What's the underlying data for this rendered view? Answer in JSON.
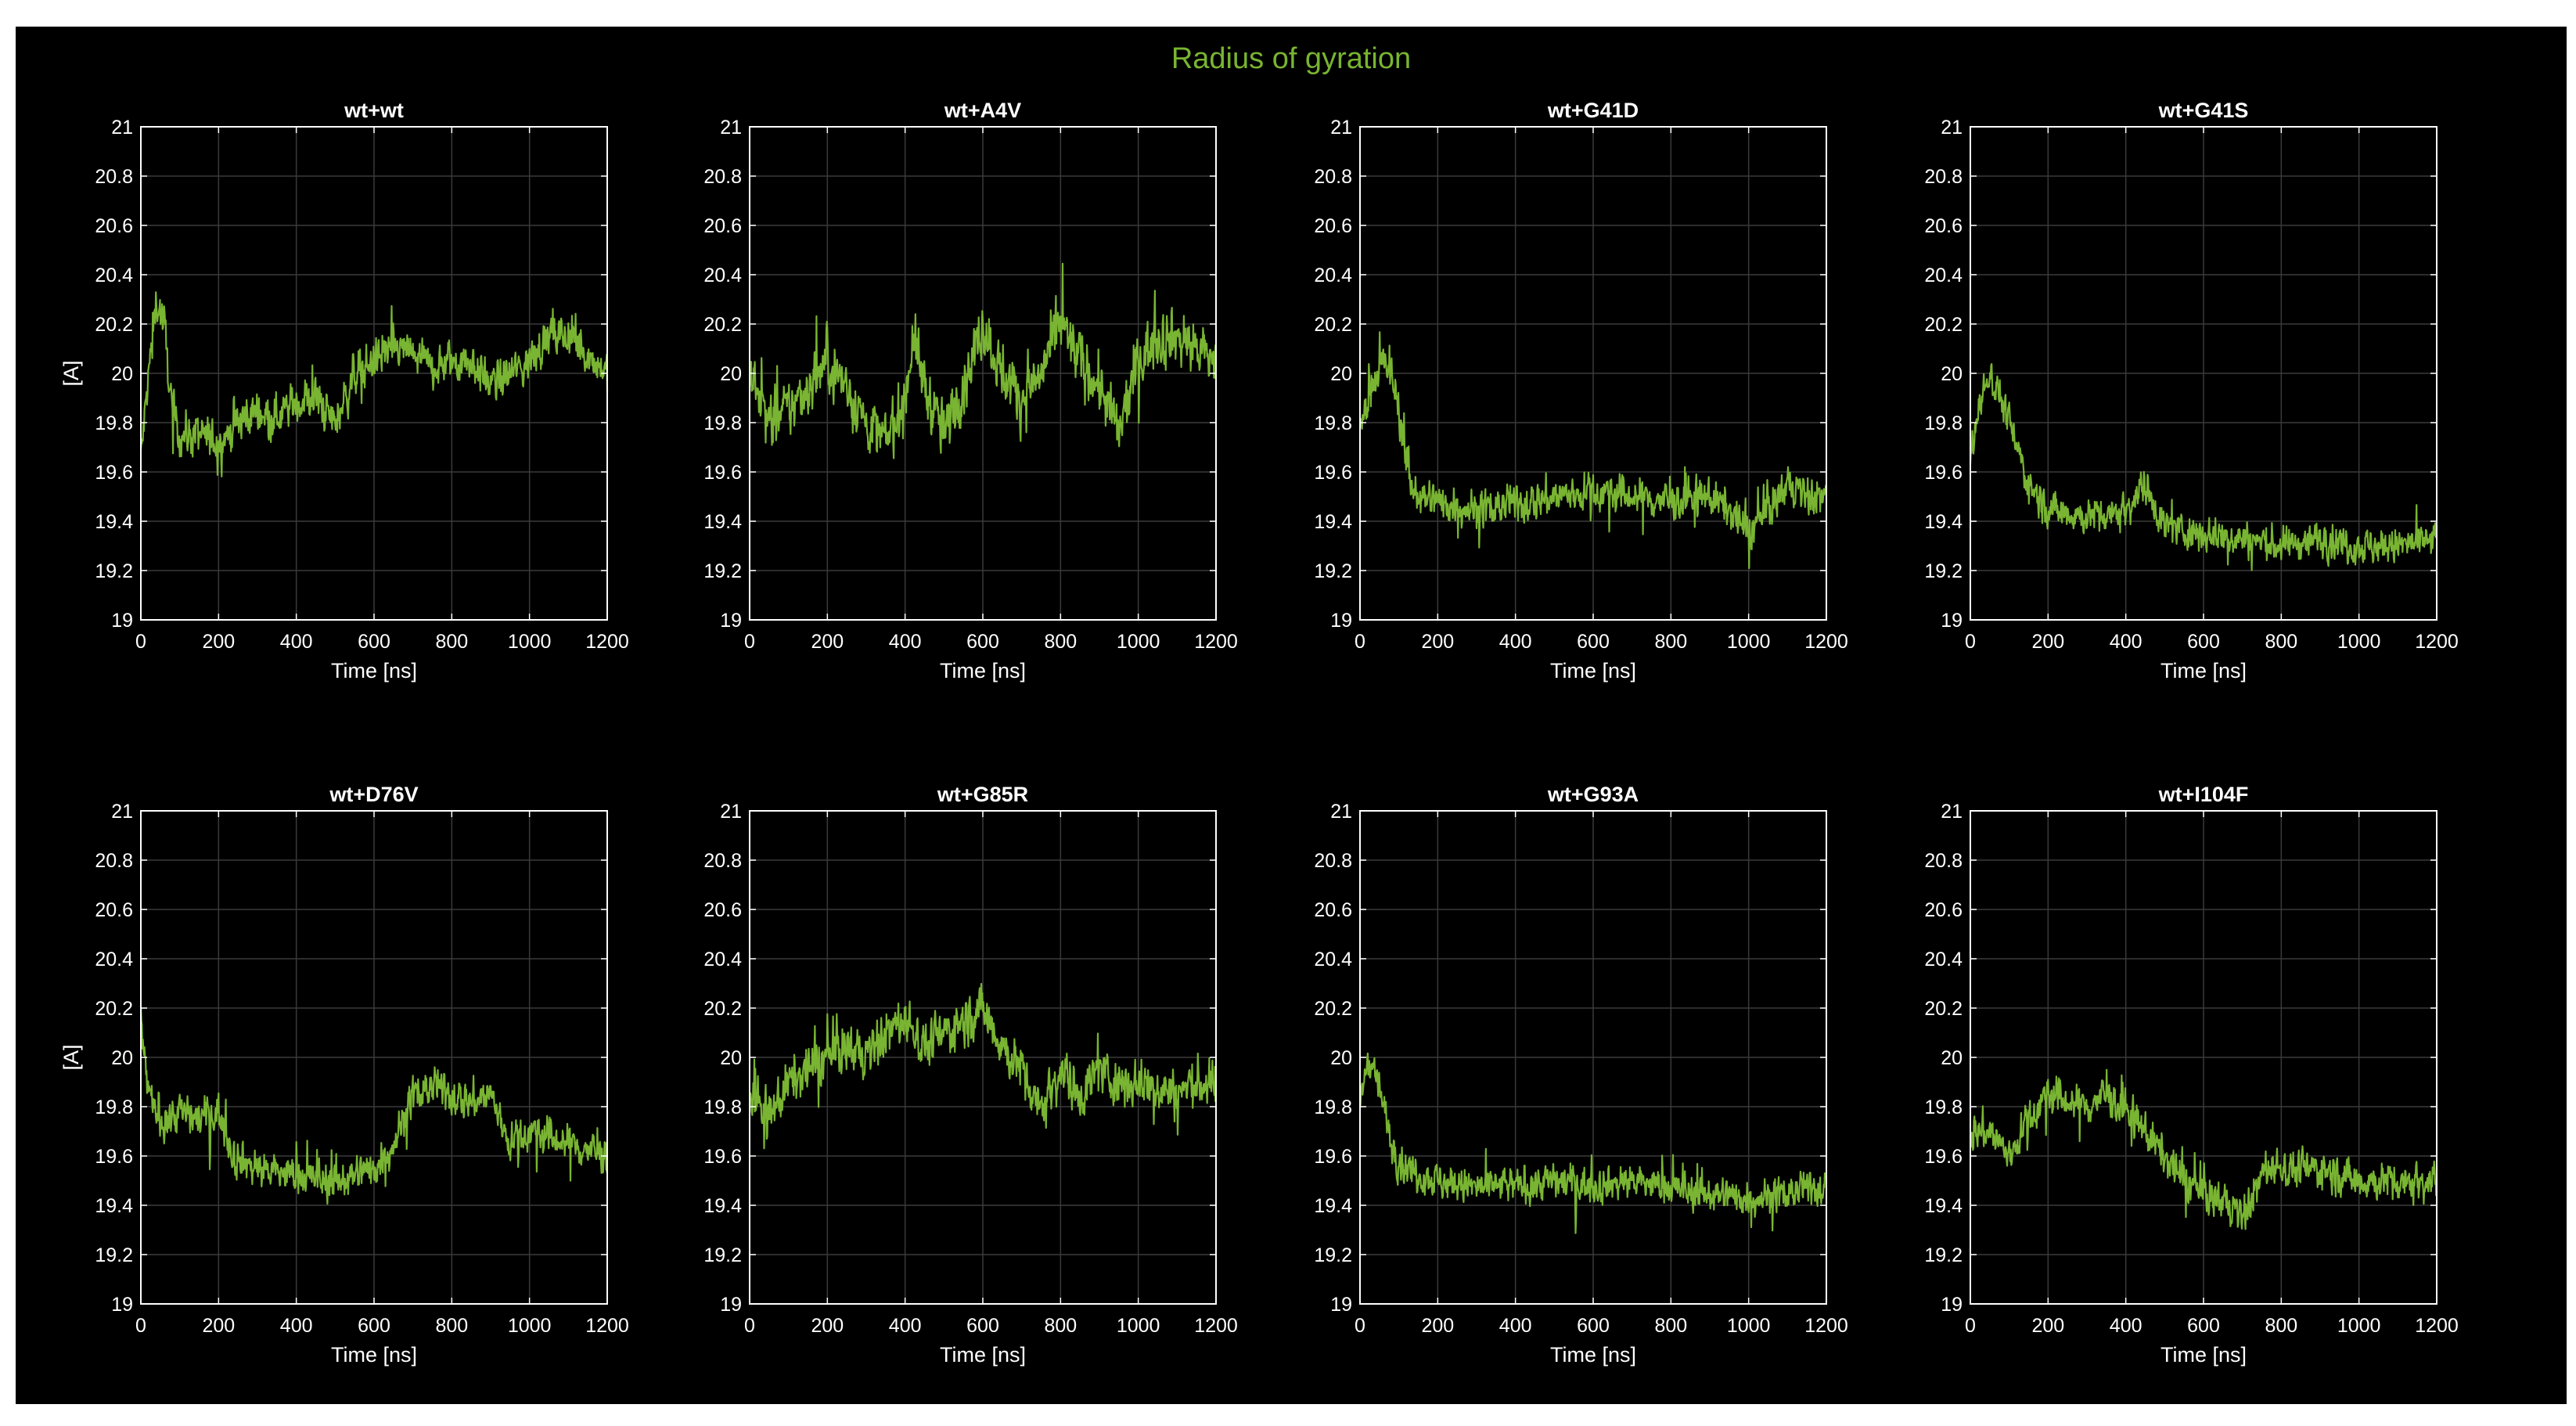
{
  "figure": {
    "title": "Radius of gyration",
    "series_color": "#79b432",
    "background": "#000000"
  },
  "chart_data": [
    {
      "type": "line",
      "title": "wt+wt",
      "xlabel": "Time [ns]",
      "ylabel": "[A]",
      "xlim": [
        0,
        1200
      ],
      "ylim": [
        19,
        21
      ],
      "xticks": [
        0,
        200,
        400,
        600,
        800,
        1000,
        1200
      ],
      "yticks": [
        19,
        19.2,
        19.4,
        19.6,
        19.8,
        20,
        20.2,
        20.4,
        20.6,
        20.8,
        21
      ],
      "grid": true,
      "series": [
        {
          "x": [
            0,
            20,
            40,
            60,
            80,
            100,
            150,
            200,
            250,
            300,
            350,
            400,
            450,
            500,
            550,
            600,
            650,
            700,
            750,
            800,
            850,
            900,
            950,
            1000,
            1050,
            1100,
            1150,
            1200
          ],
          "y": [
            19.65,
            20.0,
            20.3,
            20.2,
            19.85,
            19.75,
            19.75,
            19.72,
            19.8,
            19.85,
            19.83,
            19.88,
            19.9,
            19.8,
            20.0,
            20.05,
            20.1,
            20.08,
            20.02,
            20.05,
            20.05,
            19.95,
            20.0,
            20.05,
            20.15,
            20.15,
            20.08,
            20.0
          ],
          "spread": 0.13
        }
      ]
    },
    {
      "type": "line",
      "title": "wt+A4V",
      "xlabel": "Time [ns]",
      "ylabel": "",
      "xlim": [
        0,
        1200
      ],
      "ylim": [
        19,
        21
      ],
      "xticks": [
        0,
        200,
        400,
        600,
        800,
        1000,
        1200
      ],
      "yticks": [
        19,
        19.2,
        19.4,
        19.6,
        19.8,
        20,
        20.2,
        20.4,
        20.6,
        20.8,
        21
      ],
      "grid": true,
      "series": [
        {
          "x": [
            0,
            50,
            100,
            150,
            200,
            250,
            300,
            350,
            400,
            420,
            450,
            500,
            550,
            600,
            650,
            700,
            750,
            800,
            850,
            900,
            950,
            1000,
            1050,
            1100,
            1150,
            1200
          ],
          "y": [
            20.0,
            19.8,
            19.85,
            19.95,
            20.05,
            19.95,
            19.8,
            19.72,
            19.9,
            20.15,
            19.95,
            19.75,
            19.95,
            20.2,
            20.0,
            19.9,
            20.0,
            20.2,
            20.05,
            19.95,
            19.75,
            20.05,
            20.15,
            20.15,
            20.1,
            20.05
          ],
          "spread": 0.18
        }
      ]
    },
    {
      "type": "line",
      "title": "wt+G41D",
      "xlabel": "Time [ns]",
      "ylabel": "",
      "xlim": [
        0,
        1200
      ],
      "ylim": [
        19,
        21
      ],
      "xticks": [
        0,
        200,
        400,
        600,
        800,
        1000,
        1200
      ],
      "yticks": [
        19,
        19.2,
        19.4,
        19.6,
        19.8,
        20,
        20.2,
        20.4,
        20.6,
        20.8,
        21
      ],
      "grid": true,
      "series": [
        {
          "x": [
            0,
            30,
            60,
            90,
            110,
            130,
            160,
            200,
            300,
            400,
            500,
            600,
            700,
            800,
            900,
            950,
            1000,
            1050,
            1100,
            1150,
            1200
          ],
          "y": [
            19.75,
            19.95,
            20.05,
            19.95,
            19.75,
            19.55,
            19.5,
            19.48,
            19.45,
            19.47,
            19.5,
            19.52,
            19.5,
            19.48,
            19.5,
            19.45,
            19.35,
            19.45,
            19.55,
            19.5,
            19.5
          ],
          "spread": 0.12
        }
      ]
    },
    {
      "type": "line",
      "title": "wt+G41S",
      "xlabel": "Time [ns]",
      "ylabel": "",
      "xlim": [
        0,
        1200
      ],
      "ylim": [
        19,
        21
      ],
      "xticks": [
        0,
        200,
        400,
        600,
        800,
        1000,
        1200
      ],
      "yticks": [
        19,
        19.2,
        19.4,
        19.6,
        19.8,
        20,
        20.2,
        20.4,
        20.6,
        20.8,
        21
      ],
      "grid": true,
      "series": [
        {
          "x": [
            0,
            20,
            50,
            80,
            110,
            150,
            200,
            300,
            400,
            450,
            480,
            500,
            600,
            700,
            800,
            900,
            1000,
            1100,
            1200
          ],
          "y": [
            19.65,
            19.85,
            20.0,
            19.9,
            19.75,
            19.55,
            19.45,
            19.42,
            19.45,
            19.55,
            19.45,
            19.38,
            19.35,
            19.33,
            19.3,
            19.33,
            19.3,
            19.3,
            19.32
          ],
          "spread": 0.11
        }
      ]
    },
    {
      "type": "line",
      "title": "wt+D76V",
      "xlabel": "Time [ns]",
      "ylabel": "[A]",
      "xlim": [
        0,
        1200
      ],
      "ylim": [
        19,
        21
      ],
      "xticks": [
        0,
        200,
        400,
        600,
        800,
        1000,
        1200
      ],
      "yticks": [
        19,
        19.2,
        19.4,
        19.6,
        19.8,
        20,
        20.2,
        20.4,
        20.6,
        20.8,
        21
      ],
      "grid": true,
      "series": [
        {
          "x": [
            0,
            10,
            30,
            60,
            100,
            150,
            200,
            240,
            300,
            400,
            500,
            600,
            650,
            700,
            750,
            800,
            850,
            900,
            950,
            1000,
            1100,
            1200
          ],
          "y": [
            20.2,
            19.95,
            19.8,
            19.75,
            19.78,
            19.75,
            19.78,
            19.6,
            19.55,
            19.52,
            19.5,
            19.55,
            19.65,
            19.85,
            19.88,
            19.85,
            19.82,
            19.85,
            19.65,
            19.7,
            19.65,
            19.6
          ],
          "spread": 0.12
        }
      ]
    },
    {
      "type": "line",
      "title": "wt+G85R",
      "xlabel": "Time [ns]",
      "ylabel": "",
      "xlim": [
        0,
        1200
      ],
      "ylim": [
        19,
        21
      ],
      "xticks": [
        0,
        200,
        400,
        600,
        800,
        1000,
        1200
      ],
      "yticks": [
        19,
        19.2,
        19.4,
        19.6,
        19.8,
        20,
        20.2,
        20.4,
        20.6,
        20.8,
        21
      ],
      "grid": true,
      "series": [
        {
          "x": [
            0,
            50,
            100,
            150,
            200,
            250,
            300,
            350,
            400,
            450,
            500,
            550,
            600,
            650,
            700,
            750,
            800,
            850,
            900,
            950,
            1000,
            1050,
            1100,
            1150,
            1200
          ],
          "y": [
            19.85,
            19.75,
            19.9,
            19.95,
            20.0,
            20.05,
            20.0,
            20.1,
            20.15,
            20.05,
            20.1,
            20.15,
            20.2,
            20.05,
            19.95,
            19.8,
            19.95,
            19.85,
            19.95,
            19.9,
            19.9,
            19.88,
            19.85,
            19.9,
            19.88
          ],
          "spread": 0.15
        }
      ]
    },
    {
      "type": "line",
      "title": "wt+G93A",
      "xlabel": "Time [ns]",
      "ylabel": "",
      "xlim": [
        0,
        1200
      ],
      "ylim": [
        19,
        21
      ],
      "xticks": [
        0,
        200,
        400,
        600,
        800,
        1000,
        1200
      ],
      "yticks": [
        19,
        19.2,
        19.4,
        19.6,
        19.8,
        20,
        20.2,
        20.4,
        20.6,
        20.8,
        21
      ],
      "grid": true,
      "series": [
        {
          "x": [
            0,
            20,
            40,
            60,
            90,
            120,
            200,
            300,
            400,
            500,
            600,
            700,
            800,
            900,
            1000,
            1100,
            1200
          ],
          "y": [
            19.8,
            20.0,
            19.95,
            19.8,
            19.6,
            19.55,
            19.5,
            19.47,
            19.48,
            19.5,
            19.48,
            19.5,
            19.47,
            19.45,
            19.43,
            19.45,
            19.48
          ],
          "spread": 0.11
        }
      ]
    },
    {
      "type": "line",
      "title": "wt+I104F",
      "xlabel": "Time [ns]",
      "ylabel": "",
      "xlim": [
        0,
        1200
      ],
      "ylim": [
        19,
        21
      ],
      "xticks": [
        0,
        200,
        400,
        600,
        800,
        1000,
        1200
      ],
      "yticks": [
        19,
        19.2,
        19.4,
        19.6,
        19.8,
        20,
        20.2,
        20.4,
        20.6,
        20.8,
        21
      ],
      "grid": true,
      "series": [
        {
          "x": [
            0,
            50,
            100,
            150,
            200,
            250,
            300,
            350,
            400,
            450,
            500,
            550,
            600,
            650,
            700,
            730,
            760,
            800,
            900,
            1000,
            1100,
            1200
          ],
          "y": [
            19.7,
            19.7,
            19.6,
            19.75,
            19.85,
            19.82,
            19.8,
            19.85,
            19.78,
            19.7,
            19.6,
            19.5,
            19.45,
            19.42,
            19.35,
            19.45,
            19.55,
            19.55,
            19.55,
            19.5,
            19.5,
            19.5
          ],
          "spread": 0.12
        }
      ]
    }
  ]
}
